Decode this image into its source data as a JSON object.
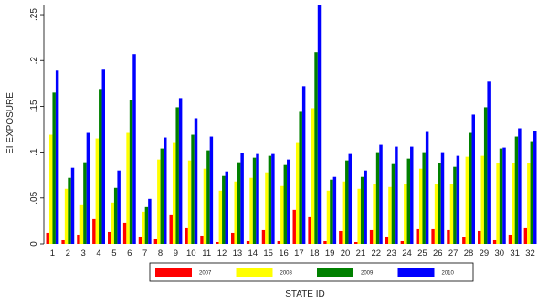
{
  "chart_data": {
    "type": "bar",
    "title": "",
    "xlabel": "STATE ID",
    "ylabel": "EI EXPOSURE",
    "ylim": [
      0,
      0.26
    ],
    "yticks": [
      0,
      0.05,
      0.1,
      0.15,
      0.2,
      0.25
    ],
    "ytick_labels": [
      "0",
      ".05",
      ".1",
      ".15",
      ".2",
      ".25"
    ],
    "grid": false,
    "legend_position": "bottom",
    "categories": [
      "1",
      "2",
      "3",
      "4",
      "5",
      "6",
      "7",
      "8",
      "9",
      "10",
      "11",
      "12",
      "13",
      "14",
      "15",
      "16",
      "17",
      "18",
      "19",
      "20",
      "21",
      "22",
      "23",
      "24",
      "25",
      "26",
      "27",
      "28",
      "29",
      "30",
      "31",
      "32"
    ],
    "series": [
      {
        "name": "2007",
        "color": "#ff0000",
        "values": [
          0.012,
          0.004,
          0.01,
          0.027,
          0.013,
          0.023,
          0.008,
          0.005,
          0.032,
          0.017,
          0.009,
          0.002,
          0.012,
          0.003,
          0.015,
          0.003,
          0.037,
          0.029,
          0.003,
          0.014,
          0.002,
          0.015,
          0.008,
          0.003,
          0.016,
          0.016,
          0.015,
          0.007,
          0.014,
          0.004,
          0.01,
          0.017
        ]
      },
      {
        "name": "2008",
        "color": "#ffff00",
        "values": [
          0.119,
          0.06,
          0.043,
          0.115,
          0.045,
          0.121,
          0.035,
          0.092,
          0.11,
          0.091,
          0.082,
          0.058,
          0.068,
          0.072,
          0.078,
          0.063,
          0.11,
          0.148,
          0.058,
          0.068,
          0.06,
          0.065,
          0.062,
          0.065,
          0.082,
          0.065,
          0.065,
          0.095,
          0.096,
          0.088,
          0.088,
          0.088
        ]
      },
      {
        "name": "2009",
        "color": "#008000",
        "values": [
          0.165,
          0.072,
          0.089,
          0.168,
          0.061,
          0.157,
          0.04,
          0.104,
          0.149,
          0.119,
          0.102,
          0.074,
          0.089,
          0.094,
          0.096,
          0.086,
          0.144,
          0.209,
          0.07,
          0.091,
          0.073,
          0.1,
          0.087,
          0.093,
          0.1,
          0.088,
          0.084,
          0.121,
          0.149,
          0.104,
          0.117,
          0.112
        ]
      },
      {
        "name": "2010",
        "color": "#0000ff",
        "values": [
          0.189,
          0.083,
          0.121,
          0.19,
          0.08,
          0.207,
          0.049,
          0.116,
          0.159,
          0.137,
          0.117,
          0.079,
          0.099,
          0.098,
          0.098,
          0.092,
          0.172,
          0.261,
          0.073,
          0.098,
          0.08,
          0.108,
          0.106,
          0.106,
          0.122,
          0.1,
          0.096,
          0.141,
          0.177,
          0.105,
          0.126,
          0.123
        ]
      }
    ]
  }
}
